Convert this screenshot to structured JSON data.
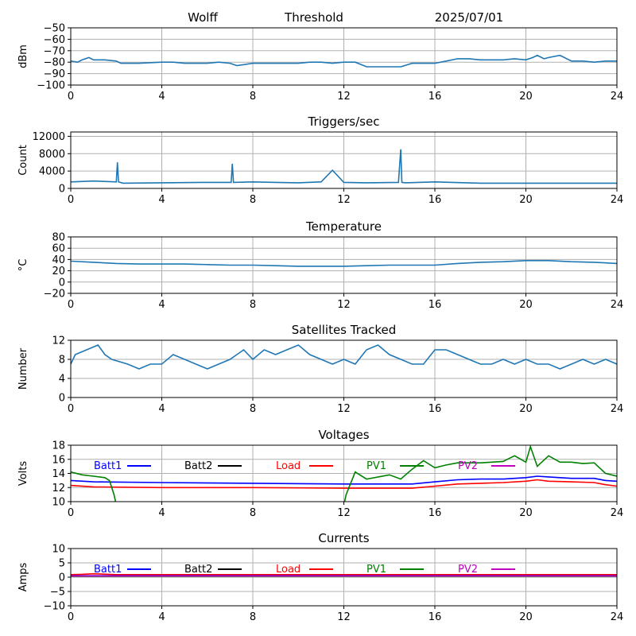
{
  "colors": {
    "series": "#1f77b4",
    "grid": "#b0b0b0",
    "Batt1": "#0000ff",
    "Batt2": "#000000",
    "Load": "#ff0000",
    "PV1": "#008000",
    "PV2": "#bf00bf"
  },
  "header": {
    "station": "Wolff",
    "mode": "Threshold",
    "date": "2025/07/01"
  },
  "chart_data": [
    {
      "id": "threshold",
      "type": "line",
      "title": "",
      "ylabel": "dBm",
      "xlim": [
        0,
        24
      ],
      "xticks": [
        0,
        4,
        8,
        12,
        16,
        20,
        24
      ],
      "ylim": [
        -100,
        -50
      ],
      "yticks": [
        -100,
        -90,
        -80,
        -70,
        -60,
        -50
      ],
      "series": [
        {
          "x": [
            0,
            0.3,
            0.5,
            0.8,
            1.0,
            1.5,
            2.0,
            2.2,
            3.0,
            4.0,
            4.5,
            5.0,
            6.0,
            6.5,
            7.0,
            7.3,
            8.0,
            9.0,
            10.0,
            10.5,
            11.0,
            11.5,
            12.0,
            12.5,
            13.0,
            13.5,
            14.5,
            15.0,
            16.0,
            16.5,
            17.0,
            17.5,
            18.0,
            19.0,
            19.5,
            20.0,
            20.3,
            20.5,
            20.8,
            21.0,
            21.5,
            22.0,
            22.5,
            23.0,
            23.5,
            24.0
          ],
          "y": [
            -79,
            -80,
            -78,
            -76,
            -78,
            -78,
            -79,
            -81,
            -81,
            -80,
            -80,
            -81,
            -81,
            -80,
            -81,
            -83,
            -81,
            -81,
            -81,
            -80,
            -80,
            -81,
            -80,
            -80,
            -84,
            -84,
            -84,
            -81,
            -81,
            -79,
            -77,
            -77,
            -78,
            -78,
            -77,
            -78,
            -76,
            -74,
            -77,
            -76,
            -74,
            -79,
            -79,
            -80,
            -79,
            -79
          ]
        }
      ]
    },
    {
      "id": "triggers",
      "type": "line",
      "title": "Triggers/sec",
      "ylabel": "Count",
      "xlim": [
        0,
        24
      ],
      "xticks": [
        0,
        4,
        8,
        12,
        16,
        20,
        24
      ],
      "ylim": [
        0,
        13000
      ],
      "yticks": [
        0,
        4000,
        8000,
        12000
      ],
      "series": [
        {
          "x": [
            0,
            1,
            2.0,
            2.05,
            2.1,
            2.3,
            4,
            6,
            7.05,
            7.1,
            7.15,
            8,
            9,
            10,
            11,
            11.5,
            12,
            13,
            14.4,
            14.5,
            14.55,
            14.7,
            16,
            18,
            20,
            22,
            24
          ],
          "y": [
            1500,
            1700,
            1500,
            6000,
            1500,
            1200,
            1300,
            1400,
            1400,
            5700,
            1400,
            1500,
            1400,
            1300,
            1500,
            4200,
            1400,
            1300,
            1400,
            9000,
            1400,
            1300,
            1500,
            1200,
            1200,
            1200,
            1200
          ]
        }
      ]
    },
    {
      "id": "temperature",
      "type": "line",
      "title": "Temperature",
      "ylabel": "°C",
      "xlim": [
        0,
        24
      ],
      "xticks": [
        0,
        4,
        8,
        12,
        16,
        20,
        24
      ],
      "ylim": [
        -20,
        80
      ],
      "yticks": [
        -20,
        0,
        20,
        40,
        60,
        80
      ],
      "series": [
        {
          "x": [
            0,
            1,
            2,
            3,
            4,
            5,
            6,
            7,
            8,
            9,
            10,
            11,
            12,
            13,
            14,
            15,
            16,
            17,
            18,
            19,
            20,
            21,
            22,
            23,
            24
          ],
          "y": [
            37,
            35,
            33,
            32,
            32,
            32,
            31,
            30,
            30,
            29,
            28,
            28,
            28,
            29,
            30,
            30,
            30,
            33,
            35,
            36,
            38,
            38,
            36,
            35,
            33
          ]
        }
      ]
    },
    {
      "id": "satellites",
      "type": "line",
      "title": "Satellites Tracked",
      "ylabel": "Number",
      "xlim": [
        0,
        24
      ],
      "xticks": [
        0,
        4,
        8,
        12,
        16,
        20,
        24
      ],
      "ylim": [
        0,
        12
      ],
      "yticks": [
        0,
        4,
        8,
        12
      ],
      "series": [
        {
          "x": [
            0,
            0.2,
            1.2,
            1.5,
            1.8,
            2.5,
            3,
            3.5,
            4,
            4.5,
            5,
            5.5,
            6,
            6.5,
            7,
            7.3,
            7.6,
            8,
            8.5,
            9,
            9.5,
            10,
            10.5,
            11,
            11.5,
            12,
            12.5,
            13,
            13.5,
            14,
            14.5,
            15,
            15.5,
            16,
            16.5,
            17,
            17.5,
            18,
            18.5,
            19,
            19.5,
            20,
            20.5,
            21,
            21.5,
            22,
            22.5,
            23,
            23.5,
            24
          ],
          "y": [
            7,
            9,
            11,
            9,
            8,
            7,
            6,
            7,
            7,
            9,
            8,
            7,
            6,
            7,
            8,
            9,
            10,
            8,
            10,
            9,
            10,
            11,
            9,
            8,
            7,
            8,
            7,
            10,
            11,
            9,
            8,
            7,
            7,
            10,
            10,
            9,
            8,
            7,
            7,
            8,
            7,
            8,
            7,
            7,
            6,
            7,
            8,
            7,
            8,
            7
          ]
        }
      ]
    },
    {
      "id": "voltages",
      "type": "line",
      "title": "Voltages",
      "ylabel": "Volts",
      "xlim": [
        0,
        24
      ],
      "xticks": [
        0,
        4,
        8,
        12,
        16,
        20,
        24
      ],
      "ylim": [
        10,
        18
      ],
      "yticks": [
        10,
        12,
        14,
        16,
        18
      ],
      "legend": [
        "Batt1",
        "Batt2",
        "Load",
        "PV1",
        "PV2"
      ],
      "series": [
        {
          "name": "Batt1",
          "x": [
            0,
            1,
            4,
            8,
            12,
            15,
            16,
            17,
            18,
            19,
            20,
            20.5,
            21,
            22,
            23,
            23.5,
            24
          ],
          "y": [
            13.0,
            12.8,
            12.7,
            12.6,
            12.5,
            12.5,
            12.8,
            13.1,
            13.2,
            13.2,
            13.4,
            13.6,
            13.5,
            13.3,
            13.3,
            13.0,
            12.9
          ]
        },
        {
          "name": "Load",
          "x": [
            0,
            1,
            4,
            8,
            12,
            15,
            16,
            17,
            18,
            19,
            20,
            20.5,
            21,
            22,
            23,
            23.5,
            24
          ],
          "y": [
            12.3,
            12.1,
            12.0,
            12.0,
            11.9,
            11.9,
            12.2,
            12.5,
            12.6,
            12.7,
            12.9,
            13.1,
            12.9,
            12.8,
            12.7,
            12.4,
            12.2
          ]
        },
        {
          "name": "PV1",
          "x": [
            0,
            0.5,
            1,
            1.5,
            1.7,
            1.9,
            2.0
          ],
          "y": [
            14.2,
            13.8,
            13.6,
            13.4,
            13.0,
            11.0,
            9.5
          ]
        },
        {
          "name": "PV1",
          "x": [
            12.0,
            12.1,
            12.5,
            13,
            14,
            14.5,
            15,
            15.5,
            16,
            16.5,
            17,
            18,
            19,
            19.5,
            20,
            20.2,
            20.5,
            21,
            21.5,
            22,
            22.5,
            23,
            23.5,
            24
          ],
          "y": [
            9.5,
            11.0,
            14.2,
            13.2,
            13.8,
            13.2,
            14.6,
            15.8,
            14.8,
            15.2,
            15.5,
            15.5,
            15.7,
            16.5,
            15.6,
            17.8,
            15.0,
            16.5,
            15.6,
            15.6,
            15.4,
            15.5,
            14.0,
            13.6
          ]
        }
      ]
    },
    {
      "id": "currents",
      "type": "line",
      "title": "Currents",
      "ylabel": "Amps",
      "xlim": [
        0,
        24
      ],
      "xticks": [
        0,
        4,
        8,
        12,
        16,
        20,
        24
      ],
      "ylim": [
        -10,
        10
      ],
      "yticks": [
        -10,
        -5,
        0,
        5,
        10
      ],
      "legend": [
        "Batt1",
        "Batt2",
        "Load",
        "PV1",
        "PV2"
      ],
      "series": [
        {
          "name": "PV1",
          "x": [
            0,
            24
          ],
          "y": [
            0.3,
            0.3
          ]
        },
        {
          "name": "Load",
          "x": [
            0,
            0.5,
            1,
            2,
            4,
            8,
            12,
            16,
            20,
            24
          ],
          "y": [
            0.9,
            1.0,
            1.2,
            0.9,
            0.9,
            0.9,
            0.9,
            0.9,
            0.9,
            0.9
          ]
        },
        {
          "name": "Batt1",
          "x": [
            0,
            24
          ],
          "y": [
            0.5,
            0.5
          ]
        },
        {
          "name": "PV2",
          "x": [
            0,
            24
          ],
          "y": [
            0.4,
            0.4
          ]
        }
      ]
    }
  ]
}
